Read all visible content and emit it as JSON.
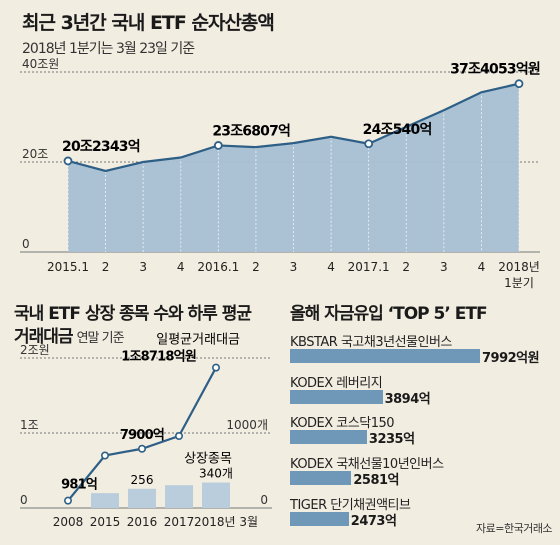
{
  "header": {
    "title": "최근 3년간 국내 ETF 순자산총액",
    "subtitle": "2018년 1분기는 3월 23일 기준"
  },
  "chart_data": [
    {
      "type": "area",
      "x": [
        "2015.1",
        "2",
        "3",
        "4",
        "2016.1",
        "2",
        "3",
        "4",
        "2017.1",
        "2",
        "3",
        "4",
        "2018년 1분기"
      ],
      "x_tick_line1": [
        "2015.1",
        "2",
        "3",
        "4",
        "2016.1",
        "2",
        "3",
        "4",
        "2017.1",
        "2",
        "3",
        "4",
        "2018년"
      ],
      "x_tick_line2": [
        "",
        "",
        "",
        "",
        "",
        "",
        "",
        "",
        "",
        "",
        "",
        "",
        "1분기"
      ],
      "values": [
        20.2343,
        18.0,
        20.0,
        21.0,
        23.6807,
        23.3,
        24.2,
        25.6,
        24.054,
        27.8,
        31.5,
        35.5,
        37.4053
      ],
      "ylim": [
        0,
        40
      ],
      "y_ticks": [
        {
          "v": 40,
          "label": "40조원"
        },
        {
          "v": 20,
          "label": "20조"
        },
        {
          "v": 0,
          "label": "0"
        }
      ],
      "annotations": [
        {
          "index": 0,
          "label": "20조2343억"
        },
        {
          "index": 4,
          "label": "23조6807억"
        },
        {
          "index": 8,
          "label": "24조540억"
        },
        {
          "index": 12,
          "label": "37조4053억원"
        }
      ],
      "fill_color": "#a6c0d4",
      "line_color": "#2e5f86"
    },
    {
      "type": "bar+line",
      "title_line1": "국내 ETF 상장 종목 수와 하루 평균",
      "title_line2": "거래대금",
      "note": "연말 기준",
      "categories": [
        "2008",
        "2015",
        "2016",
        "2017",
        "2018년 3월"
      ],
      "series": [
        {
          "name": "일평균거래대금",
          "values": [
            981,
            7000,
            7900,
            9600,
            18718
          ],
          "unit": "억원"
        },
        {
          "name": "상장종목",
          "values": [
            null,
            198,
            256,
            304,
            340
          ],
          "unit": "개"
        }
      ],
      "left_axis": {
        "ylim": [
          0,
          20000
        ],
        "ticks": [
          {
            "v": 20000,
            "label": "2조원"
          },
          {
            "v": 10000,
            "label": "1조"
          },
          {
            "v": 0,
            "label": "0"
          }
        ]
      },
      "right_axis": {
        "ylim": [
          0,
          2000
        ],
        "ticks": [
          {
            "v": 1000,
            "label": "1000개"
          },
          {
            "v": 0,
            "label": "0"
          }
        ]
      },
      "line_labels": [
        {
          "index": 0,
          "label": "981억"
        },
        {
          "index": 2,
          "label": "7900억"
        },
        {
          "index": 4,
          "label": "1조8718억원"
        }
      ],
      "bar_labels": [
        {
          "index": 2,
          "label": "256"
        },
        {
          "index": 4,
          "label": "340개"
        }
      ],
      "series_labels": {
        "line": "일평균거래대금",
        "bar": "상장종목"
      }
    },
    {
      "type": "bar",
      "orientation": "horizontal",
      "title": "올해 자금유입 ‘TOP 5’ ETF",
      "categories": [
        "KBSTAR 국고채3년선물인버스",
        "KODEX 레버리지",
        "KODEX 코스닥150",
        "KODEX 국채선물10년인버스",
        "TIGER 단기채권액티브"
      ],
      "values": [
        7992,
        3894,
        3235,
        2581,
        2473
      ],
      "value_labels": [
        "7992억원",
        "3894억",
        "3235억",
        "2581억",
        "2473억"
      ]
    }
  ],
  "footer": {
    "source": "자료=한국거래소"
  },
  "colors": {
    "background": "#f2ede1",
    "area": "#a6c0d4",
    "line": "#2e5f86",
    "bar": "#6f98b8",
    "bar_light": "#b9cddc"
  }
}
